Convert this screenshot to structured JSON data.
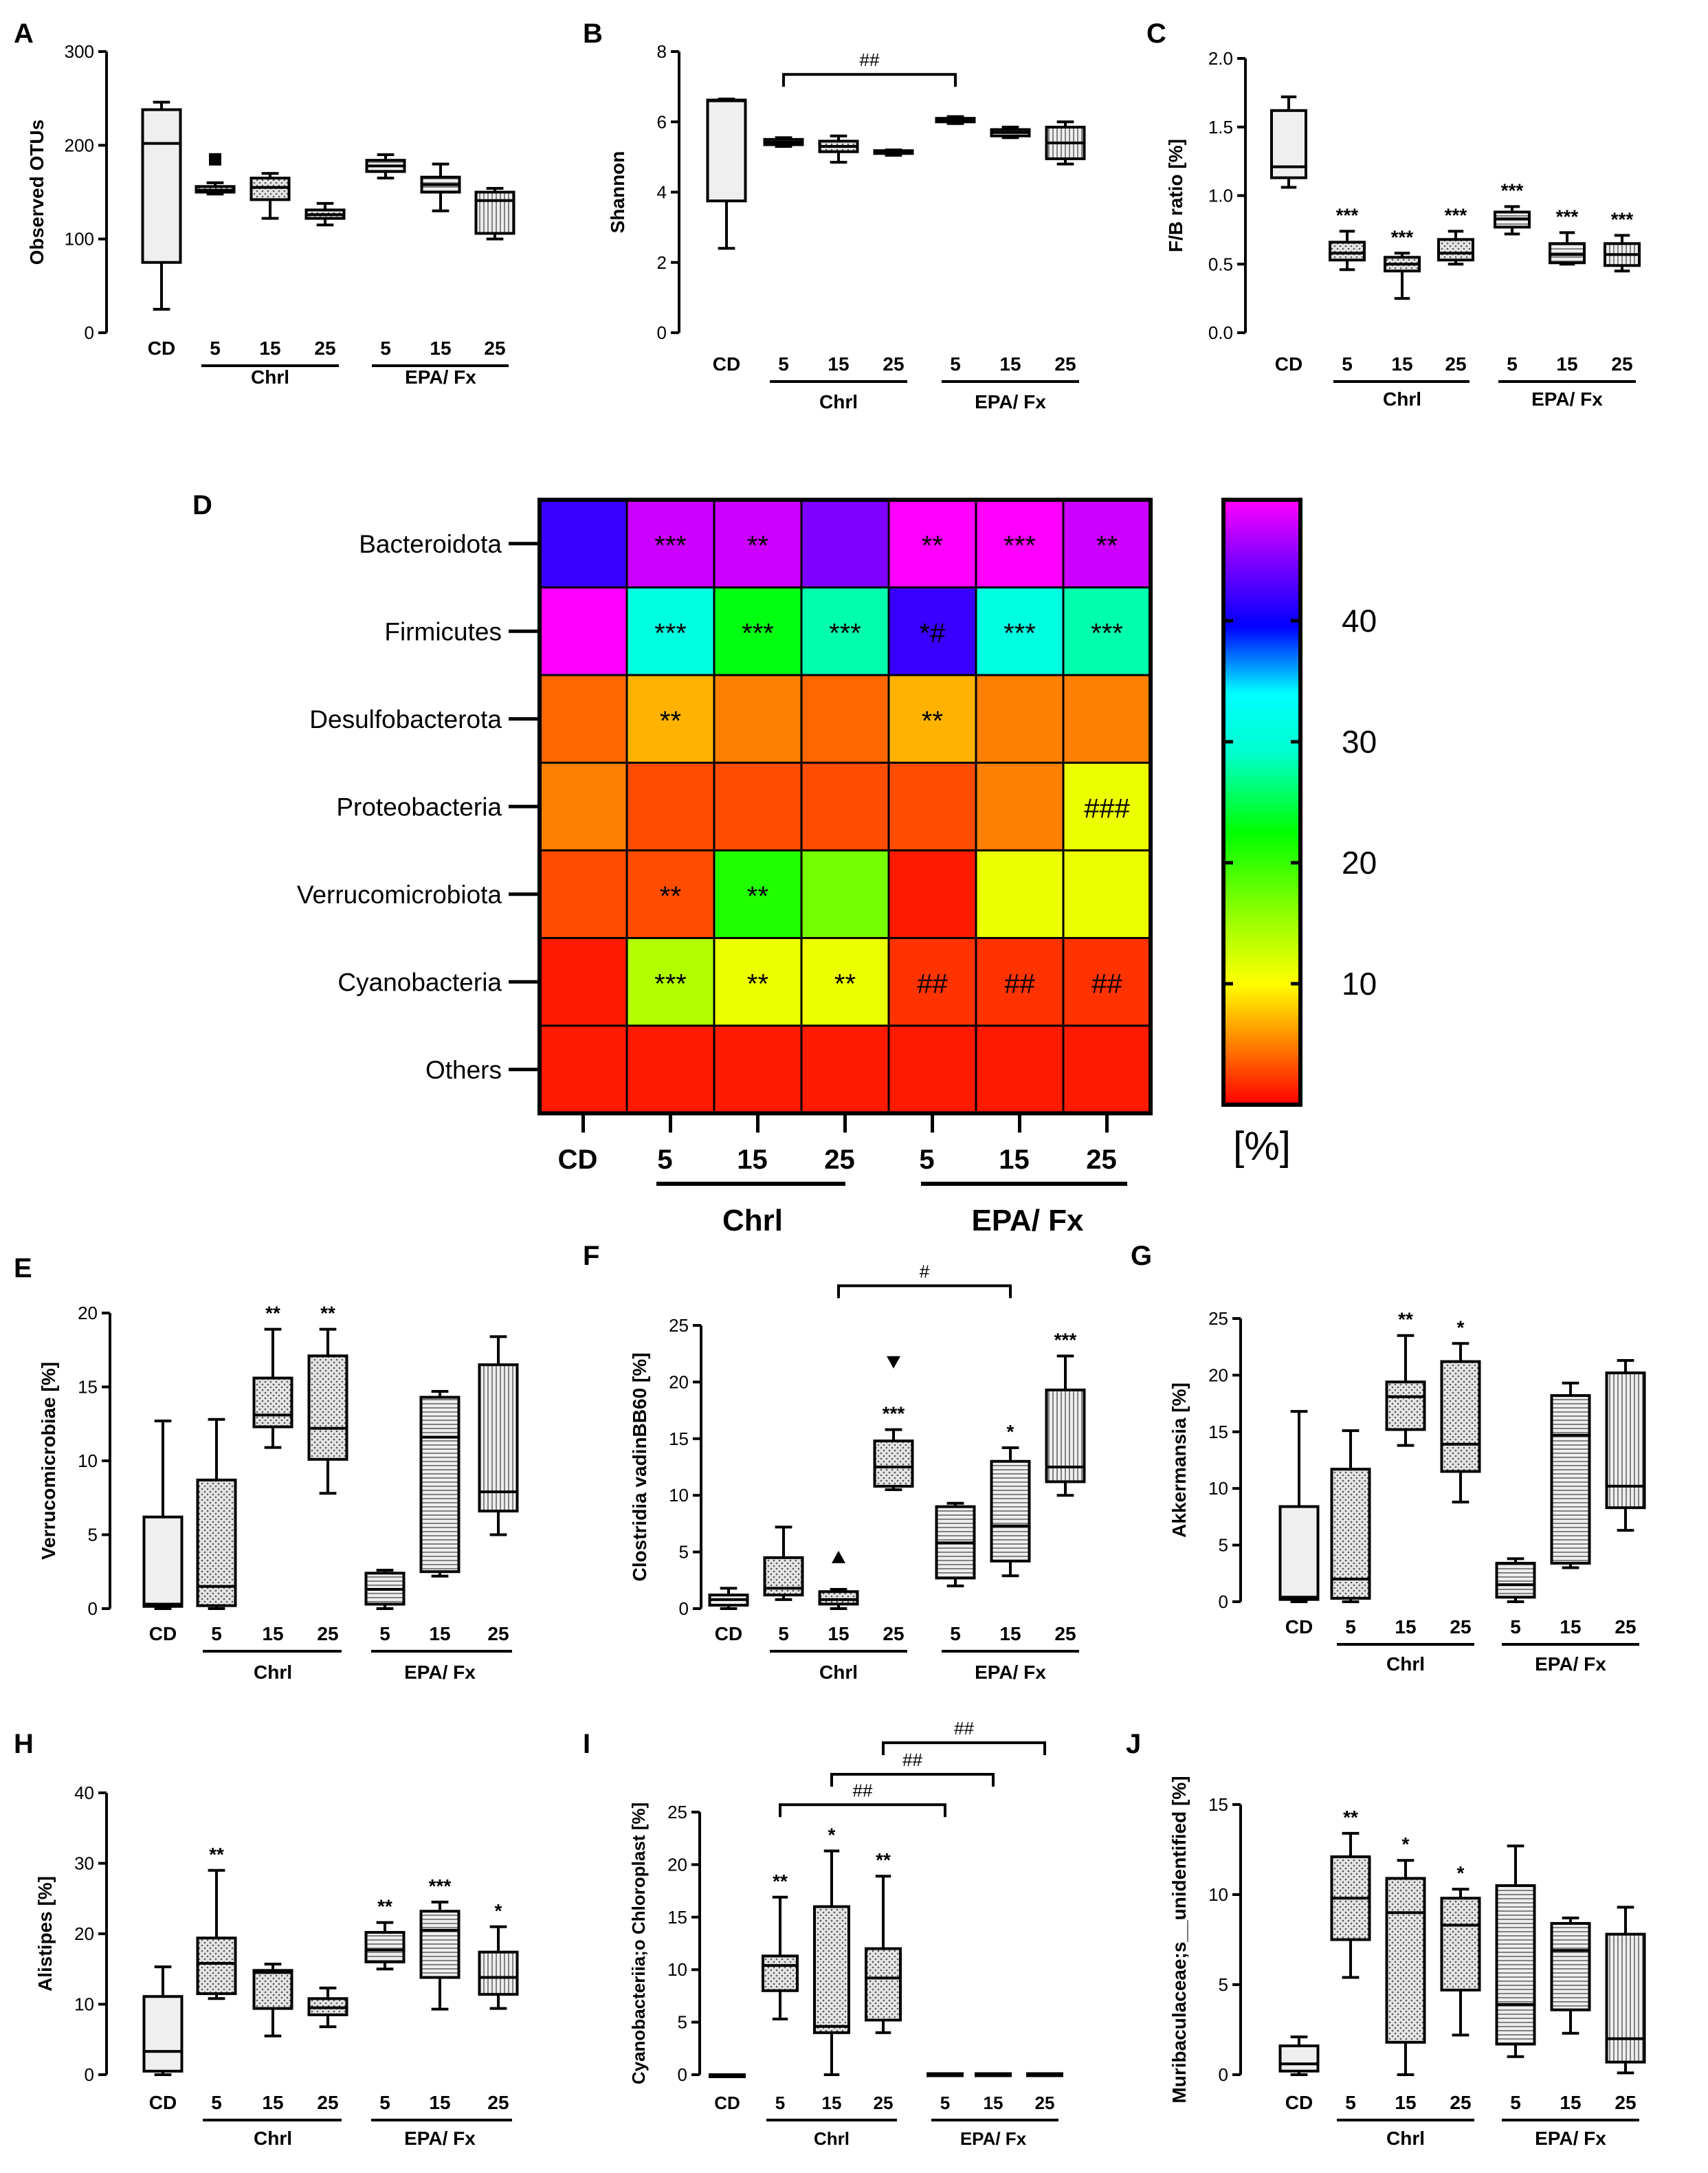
{
  "panel_letters": {
    "A": "A",
    "B": "B",
    "C": "C",
    "D": "D",
    "E": "E",
    "F": "F",
    "G": "G",
    "H": "H",
    "I": "I",
    "J": "J"
  },
  "group_labels": {
    "chrl": "Chrl",
    "epa": "EPA/ Fx",
    "cd": "CD",
    "d5": "5",
    "d15": "15",
    "d25": "25"
  },
  "colors": {
    "ink": "#000000",
    "box_fill": "#eeeeee",
    "dot_fill": "#dddddd",
    "stripe": "#888888"
  },
  "chart_data": [
    {
      "id": "A",
      "type": "box",
      "ylabel": "Observed OTUs",
      "ylim": [
        0,
        300
      ],
      "yticks": [
        "0",
        "100",
        "200",
        "300"
      ],
      "boxes": [
        [
          25,
          75,
          202,
          238,
          246
        ],
        [
          148,
          150,
          152,
          156,
          160
        ],
        [
          122,
          142,
          155,
          165,
          170
        ],
        [
          115,
          122,
          126,
          131,
          138
        ],
        [
          165,
          172,
          178,
          184,
          190
        ],
        [
          130,
          150,
          158,
          166,
          180
        ],
        [
          100,
          106,
          141,
          150,
          154
        ]
      ],
      "outliers": [
        {
          "i": 1,
          "v": 185,
          "shape": "square"
        }
      ],
      "stars": [
        "",
        "",
        "",
        "",
        "",
        "",
        ""
      ],
      "brackets": []
    },
    {
      "id": "B",
      "type": "box",
      "ylabel": "Shannon",
      "ylim": [
        0,
        8
      ],
      "yticks": [
        "0",
        "2",
        "4",
        "6",
        "8"
      ],
      "boxes": [
        [
          2.4,
          3.75,
          6.6,
          6.62,
          6.65
        ],
        [
          5.3,
          5.35,
          5.42,
          5.5,
          5.55
        ],
        [
          4.85,
          5.15,
          5.3,
          5.45,
          5.6
        ],
        [
          5.05,
          5.1,
          5.13,
          5.18,
          5.2
        ],
        [
          5.95,
          6.0,
          6.05,
          6.1,
          6.15
        ],
        [
          5.55,
          5.6,
          5.7,
          5.78,
          5.85
        ],
        [
          4.8,
          4.95,
          5.4,
          5.85,
          6.0
        ]
      ],
      "outliers": [],
      "stars": [
        "",
        "",
        "",
        "",
        "",
        "",
        ""
      ],
      "brackets": [
        {
          "from": 1,
          "to": 4,
          "y": 7.35,
          "label": "##"
        }
      ]
    },
    {
      "id": "C",
      "type": "box",
      "ylabel": "F/B ratio [%]",
      "ylim": [
        0,
        2.0
      ],
      "yticks": [
        "0.0",
        "0.5",
        "1.0",
        "1.5",
        "2.0"
      ],
      "boxes": [
        [
          1.06,
          1.13,
          1.21,
          1.62,
          1.72
        ],
        [
          0.46,
          0.53,
          0.58,
          0.66,
          0.74
        ],
        [
          0.25,
          0.45,
          0.5,
          0.55,
          0.58
        ],
        [
          0.5,
          0.53,
          0.58,
          0.68,
          0.74
        ],
        [
          0.72,
          0.77,
          0.83,
          0.88,
          0.92
        ],
        [
          0.5,
          0.51,
          0.57,
          0.65,
          0.73
        ],
        [
          0.45,
          0.49,
          0.57,
          0.65,
          0.71
        ]
      ],
      "outliers": [],
      "stars": [
        "",
        "***",
        "***",
        "***",
        "***",
        "***",
        "***"
      ],
      "brackets": []
    },
    {
      "id": "E",
      "type": "box",
      "ylabel": "Verrucomicrobiae  [%]",
      "ylim": [
        0,
        20
      ],
      "yticks": [
        "0",
        "5",
        "10",
        "15",
        "20"
      ],
      "boxes": [
        [
          0,
          0.15,
          0.3,
          6.2,
          12.7
        ],
        [
          0,
          0.2,
          1.5,
          8.7,
          12.8
        ],
        [
          10.9,
          12.3,
          13.1,
          15.6,
          18.9
        ],
        [
          7.8,
          10.1,
          12.2,
          17.1,
          18.9
        ],
        [
          0,
          0.3,
          1.3,
          2.4,
          2.6
        ],
        [
          2.2,
          2.5,
          11.6,
          14.3,
          14.7
        ],
        [
          5,
          6.6,
          7.9,
          16.5,
          18.4
        ]
      ],
      "outliers": [],
      "stars": [
        "",
        "",
        "**",
        "**",
        "",
        "",
        ""
      ],
      "brackets": []
    },
    {
      "id": "F",
      "type": "box",
      "ylabel": "Clostridia vadinBB60 [%]",
      "ylim": [
        0,
        25
      ],
      "yticks": [
        "0",
        "5",
        "10",
        "15",
        "20",
        "25"
      ],
      "boxes": [
        [
          0,
          0.3,
          0.8,
          1.2,
          1.8
        ],
        [
          0.8,
          1.2,
          1.8,
          4.5,
          7.2
        ],
        [
          0,
          0.4,
          0.8,
          1.5,
          1.7
        ],
        [
          10.5,
          10.8,
          12.5,
          14.8,
          15.8
        ],
        [
          2,
          2.7,
          5.8,
          9,
          9.3
        ],
        [
          2.9,
          4.2,
          7.3,
          13,
          14.2
        ],
        [
          10,
          11.2,
          12.5,
          19.3,
          22.3
        ]
      ],
      "outliers": [
        {
          "i": 2,
          "v": 4.5,
          "shape": "triangle-up"
        },
        {
          "i": 3,
          "v": 21.8,
          "shape": "triangle-down"
        }
      ],
      "stars": [
        "",
        "",
        "",
        "***",
        "",
        "*",
        "***"
      ],
      "brackets": [
        {
          "from": 2,
          "to": 5,
          "y": 28.5,
          "label": "#"
        }
      ]
    },
    {
      "id": "G",
      "type": "box",
      "ylabel": "Akkermansia [%]",
      "ylim": [
        0,
        25
      ],
      "yticks": [
        "0",
        "5",
        "10",
        "15",
        "20",
        "25"
      ],
      "boxes": [
        [
          0,
          0.2,
          0.4,
          8.4,
          16.8
        ],
        [
          0,
          0.3,
          2,
          11.7,
          15.1
        ],
        [
          13.8,
          15.2,
          18.1,
          19.4,
          23.5
        ],
        [
          8.8,
          11.5,
          13.9,
          21.2,
          22.8
        ],
        [
          0,
          0.4,
          1.5,
          3.4,
          3.8
        ],
        [
          3,
          3.4,
          14.7,
          18.2,
          19.3
        ],
        [
          6.3,
          8.3,
          10.2,
          20.2,
          21.3
        ]
      ],
      "outliers": [],
      "stars": [
        "",
        "",
        "**",
        "*",
        "",
        "",
        ""
      ],
      "brackets": []
    },
    {
      "id": "H",
      "type": "box",
      "ylabel": "Alistipes [%]",
      "ylim": [
        0,
        40
      ],
      "yticks": [
        "0",
        "10",
        "20",
        "30",
        "40"
      ],
      "boxes": [
        [
          0,
          0.5,
          3.3,
          11.1,
          15.3
        ],
        [
          10.8,
          11.5,
          15.8,
          19.4,
          29
        ],
        [
          5.5,
          9.4,
          14.5,
          14.8,
          15.7
        ],
        [
          6.8,
          8.5,
          9.5,
          10.8,
          12.3
        ],
        [
          15,
          16,
          17.7,
          20.2,
          21.6
        ],
        [
          9.3,
          13.8,
          20.5,
          23.2,
          24.5
        ],
        [
          9.4,
          11.4,
          13.8,
          17.4,
          21
        ]
      ],
      "outliers": [],
      "stars": [
        "",
        "**",
        "",
        "",
        "**",
        "***",
        "*"
      ],
      "brackets": []
    },
    {
      "id": "I",
      "type": "box",
      "ylabel": "Cyanobacteriia;o Chloroplast [%]",
      "ylim": [
        0,
        25
      ],
      "yticks": [
        "0",
        "5",
        "10",
        "15",
        "20",
        "25"
      ],
      "boxes": [
        [
          0,
          0,
          0,
          0,
          0
        ],
        [
          5.3,
          8,
          10.4,
          11.3,
          16.9
        ],
        [
          0,
          4,
          4.6,
          16,
          21.3
        ],
        [
          4,
          5.2,
          9.2,
          12,
          18.9
        ],
        [
          0,
          0,
          0.05,
          0.1,
          0.1
        ],
        [
          0,
          0,
          0.05,
          0.1,
          0.1
        ],
        [
          0,
          0,
          0.05,
          0.1,
          0.1
        ]
      ],
      "outliers": [],
      "stars": [
        "",
        "**",
        "*",
        "**",
        "",
        "",
        ""
      ],
      "brackets": [
        {
          "from": 1,
          "to": 4,
          "y": 25.7,
          "label": "##"
        },
        {
          "from": 2,
          "to": 5,
          "y": 28.6,
          "label": "##"
        },
        {
          "from": 3,
          "to": 6,
          "y": 31.6,
          "label": "##"
        }
      ]
    },
    {
      "id": "J",
      "type": "box",
      "ylabel": "Muribaculaceae;s__unidentified [%]",
      "ylim": [
        0,
        15
      ],
      "yticks": [
        "0",
        "5",
        "10",
        "15"
      ],
      "boxes": [
        [
          0,
          0.2,
          0.6,
          1.6,
          2.1
        ],
        [
          5.4,
          7.5,
          9.8,
          12.1,
          13.4
        ],
        [
          0,
          1.8,
          9,
          10.9,
          11.9
        ],
        [
          2.2,
          4.7,
          8.3,
          9.8,
          10.3
        ],
        [
          1,
          1.7,
          3.9,
          10.5,
          12.7
        ],
        [
          2.3,
          3.6,
          6.9,
          8.4,
          8.7
        ],
        [
          0.1,
          0.7,
          2,
          7.8,
          9.3
        ]
      ],
      "outliers": [],
      "stars": [
        "",
        "**",
        "*",
        "*",
        "",
        "",
        ""
      ],
      "brackets": []
    },
    {
      "id": "D",
      "type": "heatmap",
      "unit": "[%]",
      "rows": [
        "Bacteroidota",
        "Firmicutes",
        "Desulfobacterota",
        "Proteobacteria",
        "Verrucomicrobiota",
        "Cyanobacteria",
        "Others"
      ],
      "values": [
        [
          42,
          48,
          48,
          45,
          50,
          50,
          48
        ],
        [
          50,
          31,
          23,
          28,
          42,
          31,
          28
        ],
        [
          4,
          7,
          5,
          4,
          7,
          5,
          5
        ],
        [
          5,
          3,
          3,
          3,
          3,
          5,
          11
        ],
        [
          3,
          3,
          21,
          17,
          1,
          11,
          11
        ],
        [
          1,
          14,
          11,
          11,
          2,
          2,
          2
        ],
        [
          1,
          1,
          1,
          1,
          1,
          1,
          1
        ]
      ],
      "annotations": [
        [
          "",
          "***",
          "**",
          "",
          "**",
          "***",
          "**"
        ],
        [
          "",
          "***",
          "***",
          "***",
          "*#",
          "***",
          "***"
        ],
        [
          "",
          "**",
          "",
          "",
          "**",
          "",
          ""
        ],
        [
          "",
          "",
          "",
          "",
          "",
          "",
          "###"
        ],
        [
          "",
          "**",
          "**",
          "",
          "",
          "",
          ""
        ],
        [
          "",
          "***",
          "**",
          "**",
          "##",
          "##",
          "##"
        ],
        [
          "",
          "",
          "",
          "",
          "",
          "",
          ""
        ]
      ],
      "colorbar_ticks": [
        "10",
        "20",
        "30",
        "40"
      ]
    }
  ]
}
